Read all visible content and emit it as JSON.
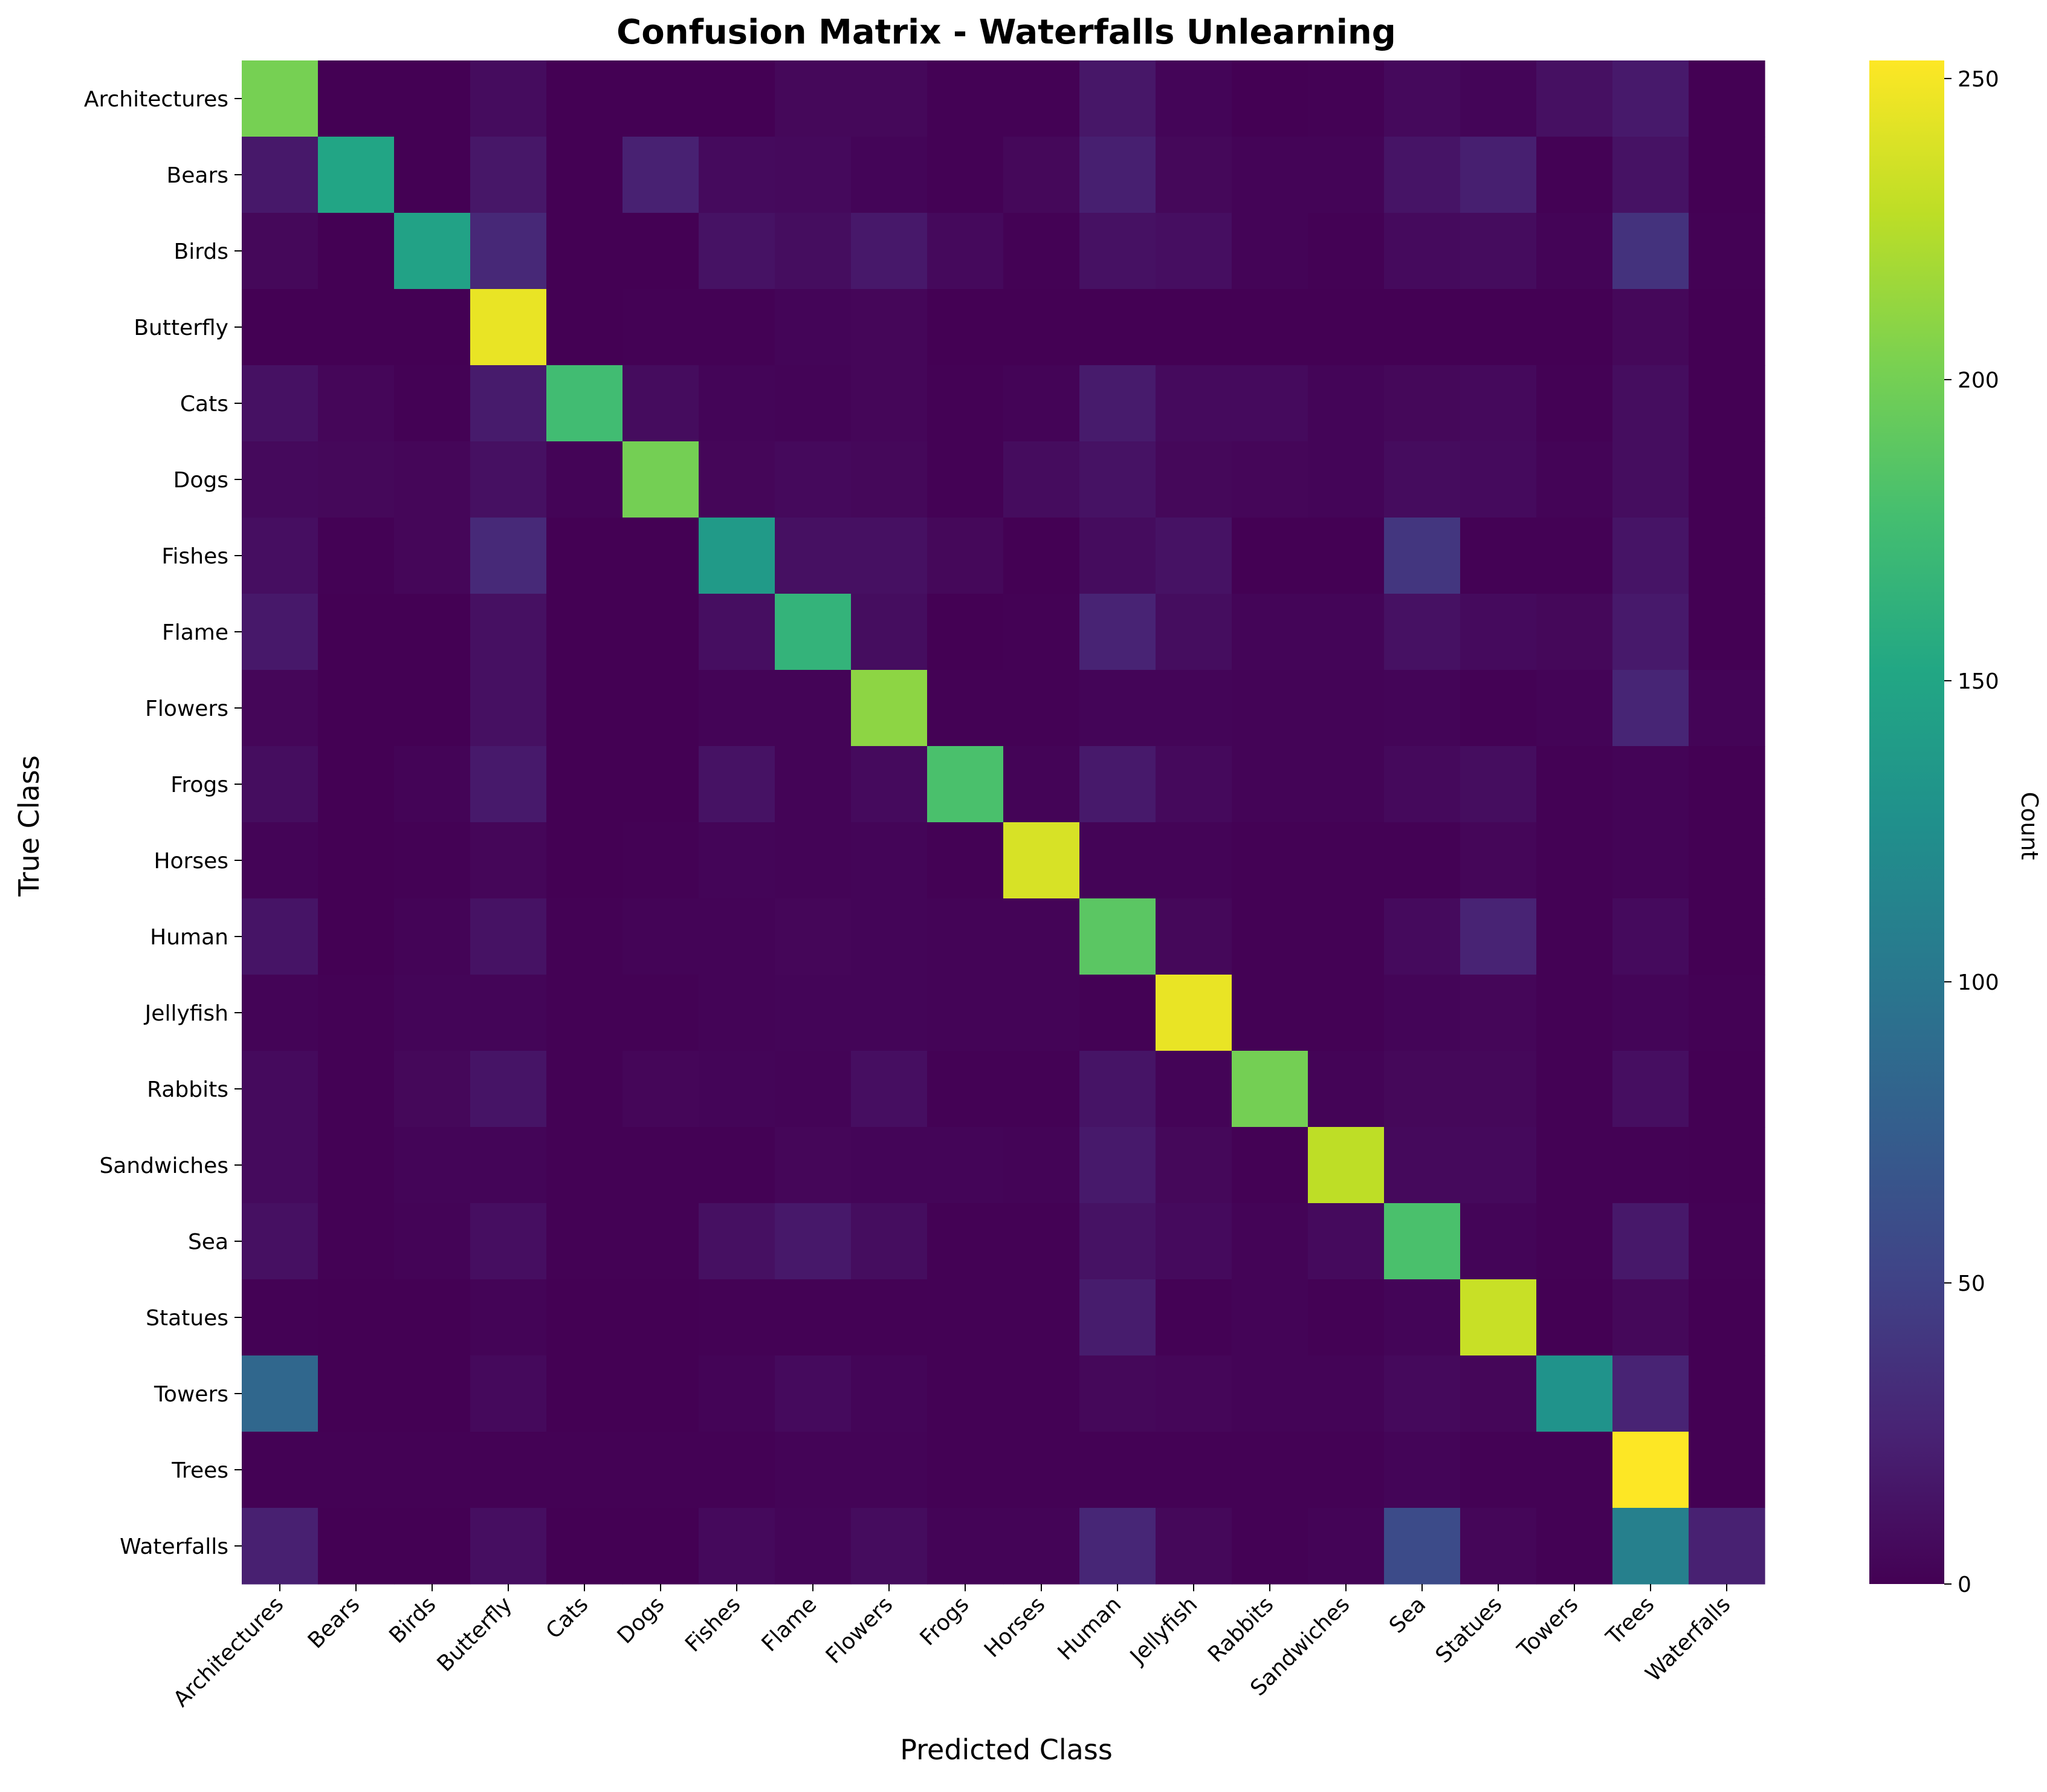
{
  "chart_data": {
    "type": "heatmap",
    "title": "Confusion Matrix - Waterfalls Unlearning",
    "xlabel": "Predicted Class",
    "ylabel": "True Class",
    "colorbar_label": "Count",
    "colormap": "viridis",
    "vmin": 0,
    "vmax": 253,
    "colorbar_ticks": [
      0,
      50,
      100,
      150,
      200,
      250
    ],
    "classes": [
      "Architectures",
      "Bears",
      "Birds",
      "Butterfly",
      "Cats",
      "Dogs",
      "Fishes",
      "Flame",
      "Flowers",
      "Frogs",
      "Horses",
      "Human",
      "Jellyfish",
      "Rabbits",
      "Sandwiches",
      "Sea",
      "Statues",
      "Towers",
      "Trees",
      "Waterfalls"
    ],
    "matrix": [
      [
        201,
        0,
        0,
        8,
        0,
        0,
        0,
        5,
        5,
        1,
        1,
        16,
        3,
        0,
        1,
        6,
        3,
        11,
        18,
        0
      ],
      [
        17,
        150,
        0,
        16,
        0,
        24,
        7,
        6,
        3,
        1,
        5,
        22,
        5,
        2,
        2,
        14,
        22,
        1,
        13,
        0
      ],
      [
        5,
        0,
        146,
        29,
        0,
        0,
        13,
        9,
        17,
        6,
        1,
        12,
        10,
        2,
        1,
        7,
        8,
        2,
        37,
        1
      ],
      [
        0,
        0,
        0,
        245,
        0,
        1,
        1,
        3,
        4,
        0,
        0,
        0,
        0,
        0,
        0,
        0,
        0,
        0,
        5,
        0
      ],
      [
        12,
        4,
        1,
        19,
        175,
        8,
        3,
        2,
        4,
        1,
        2,
        19,
        7,
        7,
        3,
        5,
        6,
        1,
        9,
        0
      ],
      [
        6,
        5,
        4,
        11,
        2,
        200,
        4,
        6,
        5,
        1,
        8,
        13,
        5,
        4,
        3,
        8,
        7,
        2,
        9,
        0
      ],
      [
        10,
        1,
        4,
        30,
        0,
        0,
        138,
        11,
        11,
        5,
        0,
        8,
        13,
        0,
        0,
        40,
        1,
        1,
        14,
        0
      ],
      [
        17,
        0,
        0,
        11,
        0,
        0,
        10,
        165,
        9,
        0,
        1,
        25,
        9,
        3,
        3,
        12,
        7,
        5,
        18,
        0
      ],
      [
        4,
        0,
        0,
        11,
        0,
        0,
        2,
        2,
        210,
        1,
        1,
        3,
        3,
        2,
        2,
        3,
        1,
        2,
        27,
        2
      ],
      [
        9,
        0,
        2,
        18,
        0,
        0,
        13,
        2,
        7,
        180,
        2,
        18,
        6,
        2,
        2,
        6,
        9,
        1,
        2,
        0
      ],
      [
        2,
        0,
        1,
        4,
        0,
        1,
        3,
        2,
        3,
        1,
        238,
        2,
        2,
        1,
        1,
        1,
        4,
        1,
        2,
        0
      ],
      [
        14,
        0,
        2,
        13,
        1,
        2,
        2,
        4,
        3,
        2,
        2,
        188,
        5,
        1,
        1,
        7,
        25,
        1,
        7,
        0
      ],
      [
        2,
        1,
        3,
        3,
        1,
        1,
        2,
        3,
        3,
        2,
        2,
        1,
        245,
        1,
        1,
        3,
        4,
        1,
        3,
        1
      ],
      [
        7,
        1,
        5,
        14,
        1,
        4,
        3,
        2,
        10,
        1,
        1,
        14,
        2,
        200,
        2,
        5,
        5,
        1,
        10,
        0
      ],
      [
        7,
        1,
        3,
        3,
        1,
        1,
        1,
        4,
        3,
        3,
        2,
        18,
        5,
        1,
        228,
        6,
        6,
        1,
        1,
        0
      ],
      [
        11,
        1,
        2,
        10,
        1,
        1,
        11,
        17,
        9,
        1,
        1,
        13,
        7,
        2,
        7,
        180,
        3,
        1,
        17,
        1
      ],
      [
        1,
        0,
        0,
        2,
        0,
        0,
        1,
        1,
        1,
        1,
        1,
        20,
        1,
        2,
        1,
        3,
        232,
        0,
        5,
        0
      ],
      [
        85,
        0,
        0,
        6,
        0,
        0,
        2,
        7,
        3,
        1,
        1,
        5,
        4,
        2,
        2,
        6,
        4,
        130,
        25,
        0
      ],
      [
        1,
        1,
        1,
        1,
        1,
        1,
        1,
        2,
        2,
        1,
        1,
        1,
        1,
        1,
        1,
        3,
        1,
        1,
        253,
        0
      ],
      [
        23,
        0,
        0,
        10,
        0,
        0,
        6,
        3,
        8,
        2,
        2,
        28,
        5,
        1,
        2,
        58,
        4,
        1,
        110,
        24
      ]
    ]
  }
}
